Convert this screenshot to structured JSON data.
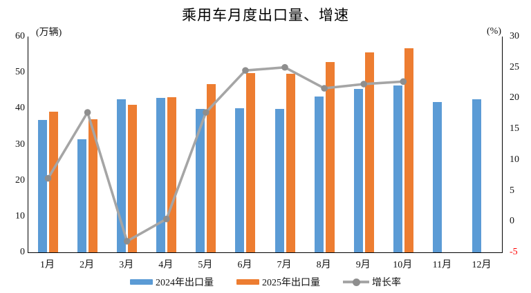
{
  "chart_data": {
    "type": "bar+line",
    "title": "乘用车月度出口量、增速",
    "categories": [
      "1月",
      "2月",
      "3月",
      "4月",
      "5月",
      "6月",
      "7月",
      "8月",
      "9月",
      "10月",
      "11月",
      "12月"
    ],
    "series": [
      {
        "name": "2024年出口量",
        "type": "bar",
        "axis": "left",
        "color": "#5B9BD5",
        "values": [
          36.8,
          31.5,
          42.6,
          43.0,
          39.8,
          40.1,
          39.8,
          43.3,
          45.4,
          46.3,
          41.7,
          42.6
        ]
      },
      {
        "name": "2025年出口量",
        "type": "bar",
        "axis": "left",
        "color": "#ED7D31",
        "values": [
          39.2,
          37.0,
          41.1,
          43.2,
          46.7,
          49.8,
          49.6,
          52.9,
          55.6,
          56.8,
          null,
          null
        ]
      },
      {
        "name": "增长率",
        "type": "line",
        "axis": "right",
        "color": "#A5A5A5",
        "marker_color": "#8E8E8E",
        "values": [
          7.0,
          17.7,
          -3.2,
          0.4,
          17.7,
          24.5,
          25.0,
          21.6,
          22.3,
          22.7,
          null,
          null
        ]
      }
    ],
    "left_axis": {
      "label": "(万辆)",
      "min": 0,
      "max": 60,
      "step": 10
    },
    "right_axis": {
      "label": "(%)",
      "min": -5,
      "max": 30,
      "step": 5,
      "negative_tick_color": "#FF0000"
    },
    "legend_position": "bottom",
    "grid": false,
    "axis_line_color": "#000000"
  }
}
